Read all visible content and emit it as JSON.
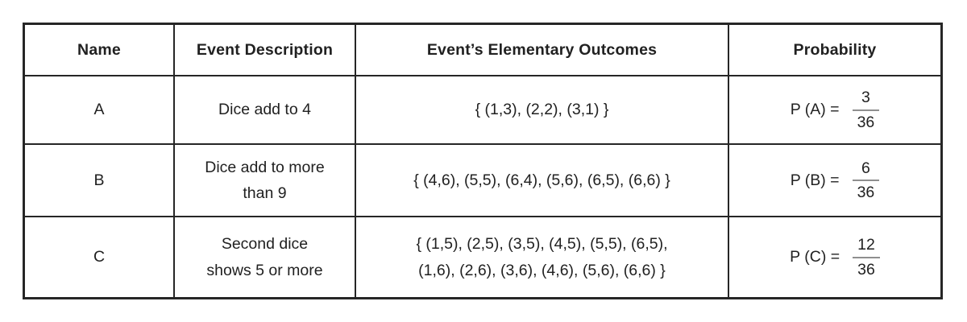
{
  "page": {
    "background": "#ffffff",
    "text_color": "#212121",
    "border_color": "#262626",
    "fraction_bar_color": "#8f8f8f"
  },
  "table": {
    "headers": [
      "Name",
      "Event Description",
      "Event’s Elementary Outcomes",
      "Probability"
    ],
    "rows": [
      {
        "name": "A",
        "description_lines": [
          "Dice add to 4"
        ],
        "outcomes_lines": [
          "{ (1,3), (2,2), (3,1) }"
        ],
        "prob_label": "P (A) =",
        "prob_numerator": "3",
        "prob_denominator": "36"
      },
      {
        "name": "B",
        "description_lines": [
          "Dice add to more",
          "than 9"
        ],
        "outcomes_lines": [
          "{ (4,6), (5,5), (6,4), (5,6), (6,5), (6,6) }"
        ],
        "prob_label": "P (B) =",
        "prob_numerator": "6",
        "prob_denominator": "36"
      },
      {
        "name": "C",
        "description_lines": [
          "Second dice",
          "shows 5 or more"
        ],
        "outcomes_lines": [
          "{ (1,5), (2,5), (3,5), (4,5), (5,5), (6,5),",
          "(1,6), (2,6), (3,6), (4,6), (5,6), (6,6) }"
        ],
        "prob_label": "P (C) =",
        "prob_numerator": "12",
        "prob_denominator": "36"
      }
    ]
  },
  "chart_data": {
    "type": "table",
    "columns": [
      "Name",
      "Event Description",
      "Event’s Elementary Outcomes",
      "Probability"
    ],
    "rows": [
      [
        "A",
        "Dice add to 4",
        "{ (1,3), (2,2), (3,1) }",
        "P (A) = 3/36"
      ],
      [
        "B",
        "Dice add to more than 9",
        "{ (4,6), (5,5), (6,4), (5,6), (6,5), (6,6) }",
        "P (B) = 6/36"
      ],
      [
        "C",
        "Second dice shows 5 or more",
        "{ (1,5), (2,5), (3,5), (4,5), (5,5), (6,5), (1,6), (2,6), (3,6), (4,6), (5,6), (6,6) }",
        "P (C) = 12/36"
      ]
    ]
  }
}
